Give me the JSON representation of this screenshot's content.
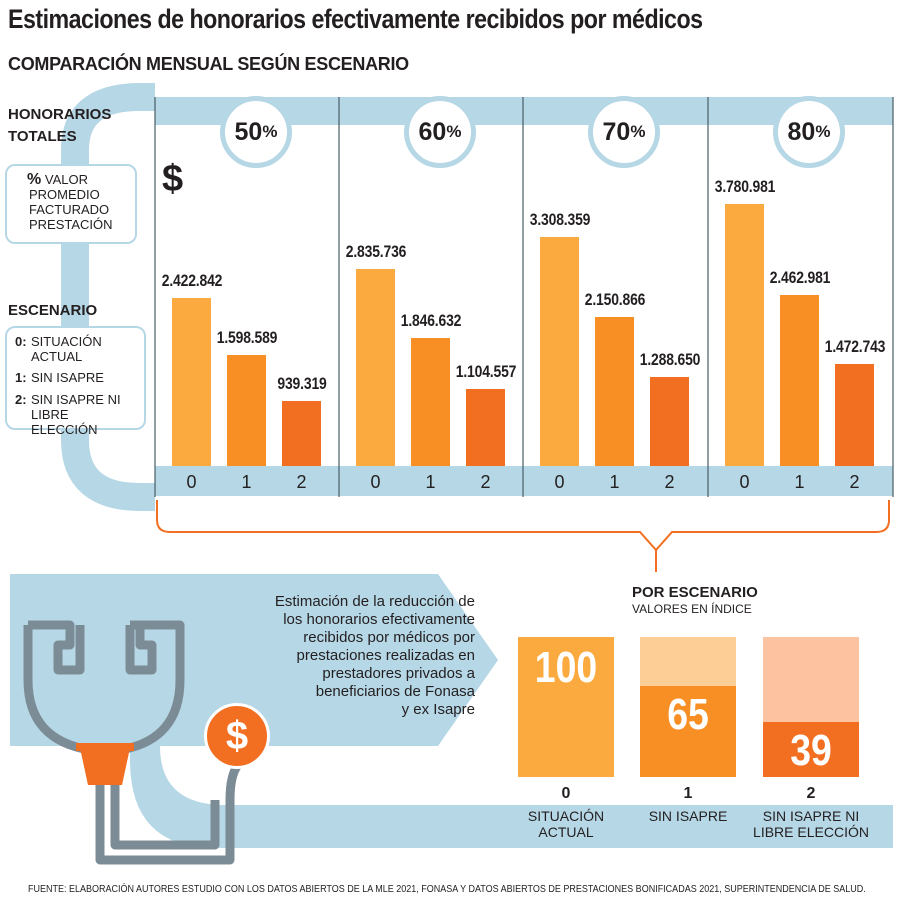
{
  "title": "Estimaciones de honorarios efectivamente recibidos por médicos",
  "subtitle": "COMPARACIÓN MENSUAL SEGÚN ESCENARIO",
  "sidebar": {
    "honorarios_line1": "HONORARIOS",
    "honorarios_line2": "TOTALES",
    "pct_symbol": "%",
    "pct_line1": "VALOR",
    "pct_line2": "PROMEDIO",
    "pct_line3": "FACTURADO",
    "pct_line4": "PRESTACIÓN",
    "escenario_label": "ESCENARIO",
    "scenarios": [
      {
        "code": "0:",
        "line1": "SITUACIÓN",
        "line2": "ACTUAL"
      },
      {
        "code": "1:",
        "line1": "SIN ISAPRE",
        "line2": ""
      },
      {
        "code": "2:",
        "line1": "SIN ISAPRE NI",
        "line2": "LIBRE ELECCIÓN"
      }
    ]
  },
  "currency_symbol": "$",
  "colors": {
    "bar0": "#fbaa3f",
    "bar1": "#f78f24",
    "bar2": "#f26f21",
    "light_bar1": "#fdcf97",
    "light_bar2": "#fdc3a1",
    "blue_band": "#b6d7e6",
    "axis_band": "#b6d7e6",
    "divider": "#4a5a66",
    "bracket": "#f26f21",
    "stethoscope": "#7c8c96"
  },
  "chart_data": [
    {
      "type": "bar",
      "title": "",
      "group_labels": [
        "50%",
        "60%",
        "70%",
        "80%"
      ],
      "categories": [
        "0",
        "1",
        "2"
      ],
      "groups": [
        {
          "label": "50%",
          "values": [
            2422842,
            1598589,
            939319
          ],
          "labels": [
            "2.422.842",
            "1.598.589",
            "939.319"
          ]
        },
        {
          "label": "60%",
          "values": [
            2835736,
            1846632,
            1104557
          ],
          "labels": [
            "2.835.736",
            "1.846.632",
            "1.104.557"
          ]
        },
        {
          "label": "70%",
          "values": [
            3308359,
            2150866,
            1288650
          ],
          "labels": [
            "3.308.359",
            "2.150.866",
            "1.288.650"
          ]
        },
        {
          "label": "80%",
          "values": [
            3780981,
            2462981,
            1472743
          ],
          "labels": [
            "3.780.981",
            "2.462.981",
            "1.472.743"
          ]
        }
      ],
      "ylim": [
        0,
        4000000
      ],
      "grid": false,
      "legend": "left"
    },
    {
      "type": "bar",
      "title": "POR ESCENARIO",
      "subtitle": "VALORES EN ÍNDICE",
      "categories": [
        "0",
        "1",
        "2"
      ],
      "category_labels": [
        [
          "SITUACIÓN",
          "ACTUAL"
        ],
        [
          "SIN ISAPRE",
          ""
        ],
        [
          "SIN ISAPRE NI",
          "LIBRE ELECCIÓN"
        ]
      ],
      "values": [
        100,
        65,
        39
      ],
      "value_labels": [
        "100",
        "65",
        "39"
      ],
      "ylim": [
        0,
        100
      ]
    }
  ],
  "bottom_text": [
    "Estimación de la reducción de",
    "los honorarios efectivamente",
    "recibidos por médicos por",
    "prestaciones realizadas en",
    "prestadores privados a",
    "beneficiarios de Fonasa",
    "y ex Isapre"
  ],
  "icons": {
    "stethoscope": "stethoscope-icon",
    "dollar_coin": "dollar-coin-icon"
  },
  "dollar_coin_symbol": "$",
  "source": "FUENTE: ELABORACIÓN AUTORES ESTUDIO CON LOS DATOS ABIERTOS DE LA MLE 2021, FONASA Y DATOS ABIERTOS DE PRESTACIONES BONIFICADAS 2021, SUPERINTENDENCIA DE SALUD."
}
